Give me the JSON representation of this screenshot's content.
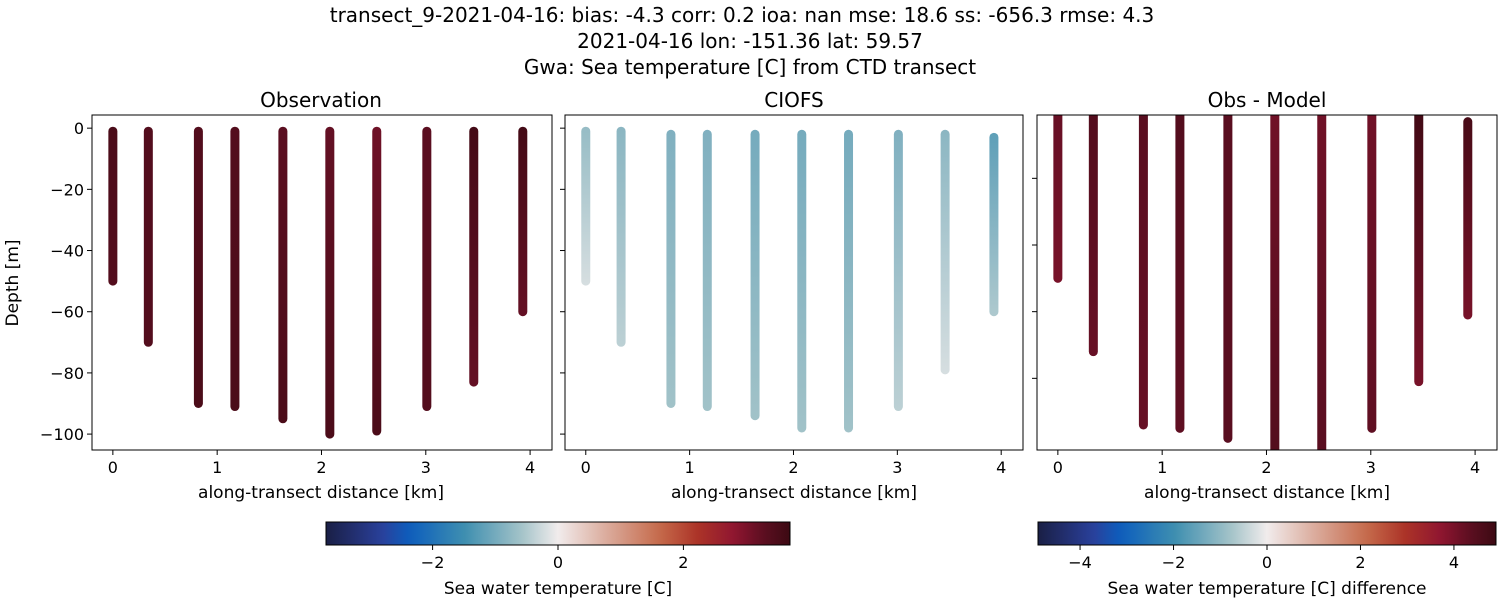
{
  "title": {
    "line1": "transect_9-2021-04-16: bias: -4.3  corr: 0.2  ioa: nan  mse: 18.6  ss: -656.3  rmse: 4.3",
    "line2": "2021-04-16 lon: -151.36 lat: 59.57",
    "line3": "Gwa: Sea temperature [C] from CTD transect"
  },
  "colors": {
    "frame": "#000000",
    "background": "#ffffff"
  },
  "chart_data": [
    {
      "type": "scatter",
      "title": "Observation",
      "xlabel": "along-transect distance [km]",
      "ylabel": "Depth [m]",
      "xlim": [
        -0.2,
        4.21
      ],
      "ylim": [
        -105.2,
        4.3
      ],
      "xticks": [
        0,
        1,
        2,
        3,
        4
      ],
      "yticks": [
        0,
        -20,
        -40,
        -60,
        -80,
        -100
      ],
      "ytick_labels": [
        "0",
        "−20",
        "−40",
        "−60",
        "−80",
        "−100"
      ],
      "colormap": "balance",
      "clim": [
        -3.7,
        3.7
      ],
      "profiles": [
        {
          "distance": 0.0,
          "top": -1,
          "bottom": -50,
          "value_top": 3.5,
          "value_bottom": 3.4
        },
        {
          "distance": 0.34,
          "top": -1,
          "bottom": -70,
          "value_top": 3.4,
          "value_bottom": 3.4
        },
        {
          "distance": 0.82,
          "top": -1,
          "bottom": -90,
          "value_top": 3.4,
          "value_bottom": 3.5
        },
        {
          "distance": 1.17,
          "top": -1,
          "bottom": -91,
          "value_top": 3.4,
          "value_bottom": 3.5
        },
        {
          "distance": 1.63,
          "top": -1,
          "bottom": -95,
          "value_top": 3.3,
          "value_bottom": 3.5
        },
        {
          "distance": 2.08,
          "top": -1,
          "bottom": -100,
          "value_top": 3.2,
          "value_bottom": 3.5
        },
        {
          "distance": 2.53,
          "top": -1,
          "bottom": -99,
          "value_top": 3.1,
          "value_bottom": 3.5
        },
        {
          "distance": 3.01,
          "top": -1,
          "bottom": -91,
          "value_top": 3.3,
          "value_bottom": 3.4
        },
        {
          "distance": 3.46,
          "top": -1,
          "bottom": -83,
          "value_top": 3.6,
          "value_bottom": 3.2
        },
        {
          "distance": 3.93,
          "top": -1,
          "bottom": -60,
          "value_top": 3.6,
          "value_bottom": 3.2
        }
      ]
    },
    {
      "type": "scatter",
      "title": "CIOFS",
      "xlabel": "along-transect distance [km]",
      "xlim": [
        -0.2,
        4.21
      ],
      "ylim": [
        -105.2,
        4.3
      ],
      "xticks": [
        0,
        1,
        2,
        3,
        4
      ],
      "colormap": "balance",
      "clim": [
        -3.7,
        3.7
      ],
      "profiles": [
        {
          "distance": 0.0,
          "top": -1,
          "bottom": -50,
          "value_top": -0.7,
          "value_bottom": -0.2
        },
        {
          "distance": 0.34,
          "top": -1,
          "bottom": -70,
          "value_top": -0.8,
          "value_bottom": -0.4
        },
        {
          "distance": 0.82,
          "top": -2,
          "bottom": -90,
          "value_top": -0.9,
          "value_bottom": -0.6
        },
        {
          "distance": 1.17,
          "top": -2,
          "bottom": -91,
          "value_top": -0.9,
          "value_bottom": -0.6
        },
        {
          "distance": 1.63,
          "top": -2,
          "bottom": -94,
          "value_top": -1.0,
          "value_bottom": -0.6
        },
        {
          "distance": 2.08,
          "top": -2,
          "bottom": -98,
          "value_top": -1.0,
          "value_bottom": -0.6
        },
        {
          "distance": 2.53,
          "top": -2,
          "bottom": -98,
          "value_top": -1.0,
          "value_bottom": -0.6
        },
        {
          "distance": 3.01,
          "top": -2,
          "bottom": -91,
          "value_top": -0.9,
          "value_bottom": -0.4
        },
        {
          "distance": 3.46,
          "top": -2,
          "bottom": -79,
          "value_top": -0.8,
          "value_bottom": -0.2
        },
        {
          "distance": 3.93,
          "top": -3,
          "bottom": -60,
          "value_top": -1.2,
          "value_bottom": -0.5
        }
      ]
    },
    {
      "type": "scatter",
      "title": "Obs - Model",
      "xlabel": "along-transect distance [km]",
      "xlim": [
        -0.2,
        4.21
      ],
      "ylim": [
        -101.5,
        -1
      ],
      "xticks": [
        0,
        1,
        2,
        3,
        4
      ],
      "yticks": [
        -20,
        -40,
        -60,
        -80
      ],
      "colormap": "balance",
      "clim": [
        -4.9,
        4.9
      ],
      "profiles": [
        {
          "distance": 0.0,
          "top": -1,
          "bottom": -50,
          "value_top": 4.2,
          "value_bottom": 4.0
        },
        {
          "distance": 0.34,
          "top": -1,
          "bottom": -72,
          "value_top": 4.5,
          "value_bottom": 4.2
        },
        {
          "distance": 0.82,
          "top": -1,
          "bottom": -94,
          "value_top": 4.4,
          "value_bottom": 4.2
        },
        {
          "distance": 1.17,
          "top": -1,
          "bottom": -95,
          "value_top": 4.5,
          "value_bottom": 4.3
        },
        {
          "distance": 1.63,
          "top": -1,
          "bottom": -98,
          "value_top": 4.4,
          "value_bottom": 4.4
        },
        {
          "distance": 2.08,
          "top": -1,
          "bottom": -102,
          "value_top": 4.1,
          "value_bottom": 4.5
        },
        {
          "distance": 2.53,
          "top": -1,
          "bottom": -102,
          "value_top": 4.1,
          "value_bottom": 4.4
        },
        {
          "distance": 3.01,
          "top": -1,
          "bottom": -95,
          "value_top": 4.1,
          "value_bottom": 4.3
        },
        {
          "distance": 3.46,
          "top": -1,
          "bottom": -81,
          "value_top": 4.8,
          "value_bottom": 4.0
        },
        {
          "distance": 3.93,
          "top": -3,
          "bottom": -61,
          "value_top": 4.7,
          "value_bottom": 4.0
        }
      ]
    }
  ],
  "colorbars": [
    {
      "label": "Sea water temperature [C]",
      "range": [
        -3.7,
        3.7
      ],
      "ticks": [
        -2,
        0,
        2
      ],
      "tick_labels": [
        "−2",
        "0",
        "2"
      ]
    },
    {
      "label": "Sea water temperature [C] difference",
      "range": [
        -4.9,
        4.9
      ],
      "ticks": [
        -4,
        -2,
        0,
        2,
        4
      ],
      "tick_labels": [
        "−4",
        "−2",
        "0",
        "2",
        "4"
      ]
    }
  ]
}
